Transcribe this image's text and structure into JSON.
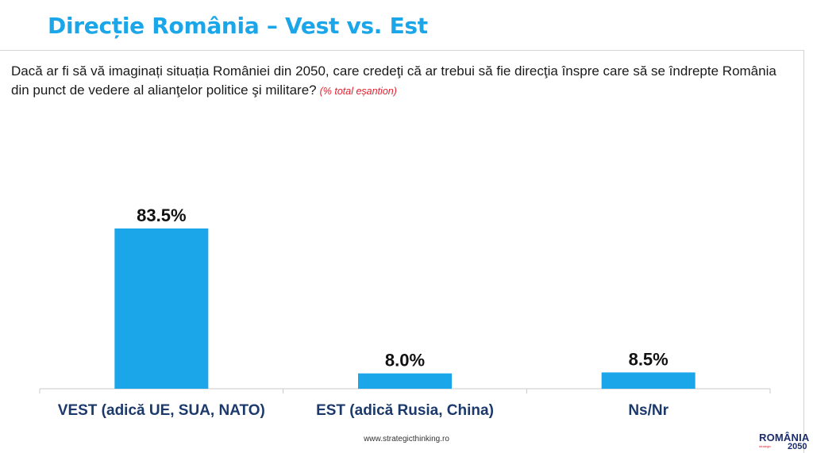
{
  "header": {
    "title": "Direcție România – Vest vs. Est"
  },
  "question": {
    "text": "Dacă ar fi să vă imaginați situația României din 2050, care credeţi că ar trebui să fie direcţia înspre care să se îndrepte România din punct de vedere al alianţelor politice şi militare?",
    "note": "(% total eșantion)"
  },
  "chart_data": {
    "type": "bar",
    "categories": [
      "VEST (adică UE, SUA, NATO)",
      "EST (adică Rusia, China)",
      "Ns/Nr"
    ],
    "values": [
      83.5,
      8.0,
      8.5
    ],
    "value_labels": [
      "83.5%",
      "8.0%",
      "8.5%"
    ],
    "ylim": [
      0,
      100
    ],
    "grid": false,
    "bar_color": "#1aa6e8"
  },
  "footer": {
    "url": "www.strategicthinking.ro"
  },
  "logo": {
    "top": "ROMÂNIA",
    "sub": "strategic",
    "year": "2050"
  },
  "colors": {
    "accent": "#1aa6e8",
    "note": "#e0202e",
    "category_text": "#1b3a6b",
    "logo": "#1b2d6e"
  }
}
